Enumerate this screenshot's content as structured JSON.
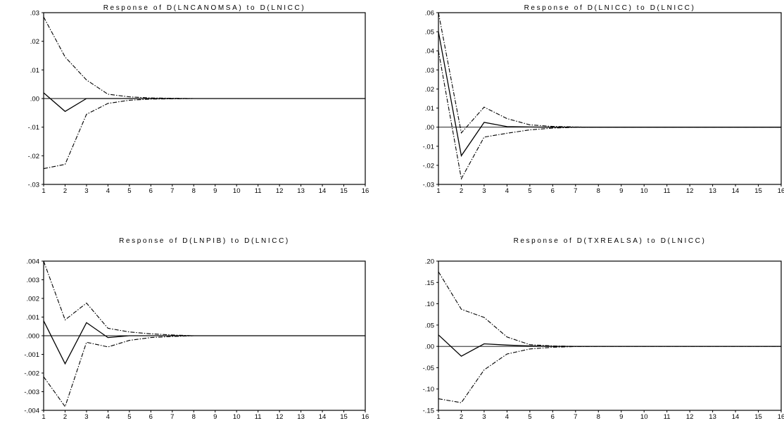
{
  "chart_data": [
    {
      "type": "line",
      "title": "Response of D(LNCANOMSA) to D(LNICC)",
      "x": [
        1,
        2,
        3,
        4,
        5,
        6,
        7,
        8,
        9,
        10,
        11,
        12,
        13,
        14,
        15,
        16
      ],
      "ylim": [
        -0.03,
        0.03
      ],
      "yticks": [
        -0.03,
        -0.02,
        -0.01,
        0.0,
        0.01,
        0.02,
        0.03
      ],
      "ytick_labels": [
        "-.03",
        "-.02",
        "-.01",
        ".00",
        ".01",
        ".02",
        ".03"
      ],
      "zero_line": true,
      "series": [
        {
          "role": "response",
          "style": "solid",
          "values": [
            0.002,
            -0.0045,
            0.0,
            0.0,
            0.0,
            0,
            0,
            0,
            0,
            0,
            0,
            0,
            0,
            0,
            0,
            0
          ]
        },
        {
          "role": "upper band",
          "style": "dashed",
          "values": [
            0.0285,
            0.0145,
            0.0065,
            0.0015,
            0.0006,
            0.0002,
            0.0001,
            0,
            0,
            0,
            0,
            0,
            0,
            0,
            0,
            0
          ]
        },
        {
          "role": "lower band",
          "style": "dashed",
          "values": [
            -0.0245,
            -0.023,
            -0.0055,
            -0.0017,
            -0.0006,
            -0.0002,
            -0.0001,
            0,
            0,
            0,
            0,
            0,
            0,
            0,
            0,
            0
          ]
        }
      ]
    },
    {
      "type": "line",
      "title": "Response of D(LNICC) to D(LNICC)",
      "x": [
        1,
        2,
        3,
        4,
        5,
        6,
        7,
        8,
        9,
        10,
        11,
        12,
        13,
        14,
        15,
        16
      ],
      "ylim": [
        -0.03,
        0.06
      ],
      "yticks": [
        -0.03,
        -0.02,
        -0.01,
        0.0,
        0.01,
        0.02,
        0.03,
        0.04,
        0.05,
        0.06
      ],
      "ytick_labels": [
        "-.03",
        "-.02",
        "-.01",
        ".00",
        ".01",
        ".02",
        ".03",
        ".04",
        ".05",
        ".06"
      ],
      "zero_line": true,
      "series": [
        {
          "role": "response",
          "style": "solid",
          "values": [
            0.05,
            -0.015,
            0.0025,
            0.0003,
            0.0001,
            0,
            0,
            0,
            0,
            0,
            0,
            0,
            0,
            0,
            0,
            0
          ]
        },
        {
          "role": "upper band",
          "style": "dashed",
          "values": [
            0.06,
            -0.003,
            0.0105,
            0.0045,
            0.0012,
            0.0004,
            0.0001,
            0,
            0,
            0,
            0,
            0,
            0,
            0,
            0,
            0
          ]
        },
        {
          "role": "lower band",
          "style": "dashed",
          "values": [
            0.04,
            -0.027,
            -0.0052,
            -0.0032,
            -0.0014,
            -0.0005,
            -0.0001,
            0,
            0,
            0,
            0,
            0,
            0,
            0,
            0,
            0
          ]
        }
      ]
    },
    {
      "type": "line",
      "title": "Response of D(LNPIB) to D(LNICC)",
      "x": [
        1,
        2,
        3,
        4,
        5,
        6,
        7,
        8,
        9,
        10,
        11,
        12,
        13,
        14,
        15,
        16
      ],
      "ylim": [
        -0.004,
        0.004
      ],
      "yticks": [
        -0.004,
        -0.003,
        -0.002,
        -0.001,
        0.0,
        0.001,
        0.002,
        0.003,
        0.004
      ],
      "ytick_labels": [
        "-.004",
        "-.003",
        "-.002",
        "-.001",
        ".000",
        ".001",
        ".002",
        ".003",
        ".004"
      ],
      "zero_line": true,
      "series": [
        {
          "role": "response",
          "style": "solid",
          "values": [
            0.0008,
            -0.0015,
            0.0007,
            -0.0001,
            0.0,
            0.0,
            0,
            0,
            0,
            0,
            0,
            0,
            0,
            0,
            0,
            0
          ]
        },
        {
          "role": "upper band",
          "style": "dashed",
          "values": [
            0.004,
            0.00085,
            0.00175,
            0.0004,
            0.0002,
            0.0001,
            4e-05,
            0,
            0,
            0,
            0,
            0,
            0,
            0,
            0,
            0
          ]
        },
        {
          "role": "lower band",
          "style": "dashed",
          "values": [
            -0.0022,
            -0.0038,
            -0.00035,
            -0.0006,
            -0.00025,
            -0.0001,
            -4e-05,
            0,
            0,
            0,
            0,
            0,
            0,
            0,
            0,
            0
          ]
        }
      ]
    },
    {
      "type": "line",
      "title": "Response of D(TXREALSA) to D(LNICC)",
      "x": [
        1,
        2,
        3,
        4,
        5,
        6,
        7,
        8,
        9,
        10,
        11,
        12,
        13,
        14,
        15,
        16
      ],
      "ylim": [
        -0.15,
        0.2
      ],
      "yticks": [
        -0.15,
        -0.1,
        -0.05,
        0.0,
        0.05,
        0.1,
        0.15,
        0.2
      ],
      "ytick_labels": [
        "-.15",
        "-.10",
        "-.05",
        ".00",
        ".05",
        ".10",
        ".15",
        ".20"
      ],
      "zero_line": true,
      "series": [
        {
          "role": "response",
          "style": "solid",
          "values": [
            0.027,
            -0.023,
            0.006,
            0.003,
            0.001,
            0,
            0,
            0,
            0,
            0,
            0,
            0,
            0,
            0,
            0,
            0
          ]
        },
        {
          "role": "upper band",
          "style": "dashed",
          "values": [
            0.175,
            0.087,
            0.068,
            0.022,
            0.004,
            0.001,
            0,
            0,
            0,
            0,
            0,
            0,
            0,
            0,
            0,
            0
          ]
        },
        {
          "role": "lower band",
          "style": "dashed",
          "values": [
            -0.123,
            -0.132,
            -0.055,
            -0.018,
            -0.006,
            -0.002,
            -0.0005,
            0,
            0,
            0,
            0,
            0,
            0,
            0,
            0,
            0
          ]
        }
      ]
    }
  ]
}
